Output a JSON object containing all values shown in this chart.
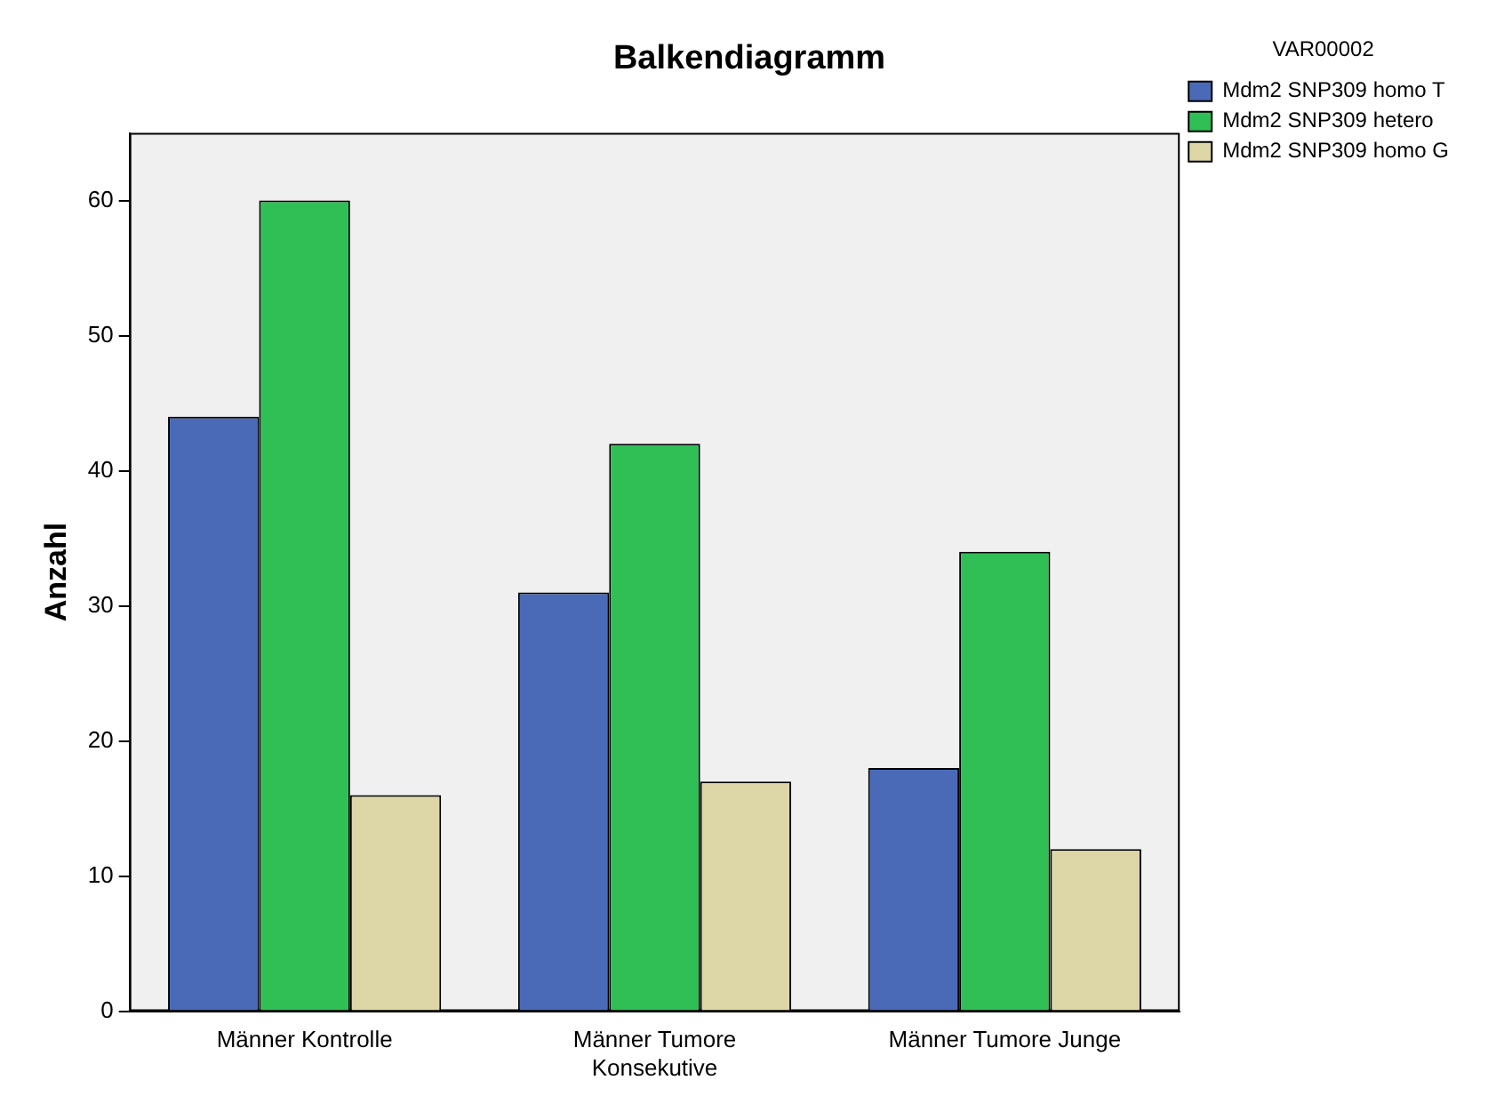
{
  "chart_data": {
    "type": "bar",
    "title": "Balkendiagramm",
    "ylabel": "Anzahl",
    "legend_title": "VAR00002",
    "categories": [
      "Männer Kontrolle",
      "Männer Tumore Konsekutive",
      "Männer Tumore Junge"
    ],
    "series": [
      {
        "name": "Mdm2 SNP309 homo T",
        "color": "#4a6ab8",
        "values": [
          44,
          31,
          18
        ]
      },
      {
        "name": "Mdm2 SNP309 hetero",
        "color": "#2fbf55",
        "values": [
          60,
          42,
          34
        ]
      },
      {
        "name": "Mdm2 SNP309 homo G",
        "color": "#ddd6a6",
        "values": [
          16,
          17,
          12
        ]
      }
    ],
    "ylim": [
      0,
      65
    ],
    "yticks": [
      0,
      10,
      20,
      30,
      40,
      50,
      60
    ],
    "grid": false,
    "legend": "top right"
  }
}
